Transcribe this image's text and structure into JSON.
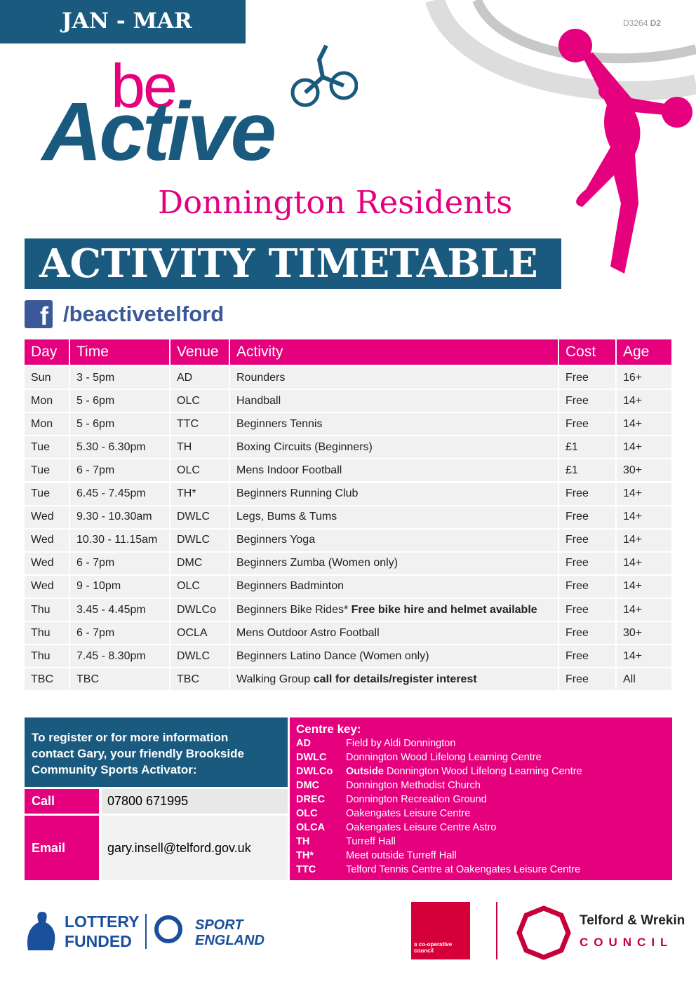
{
  "header": {
    "season": "JAN - MAR",
    "code": "D3264",
    "code_suffix": "D2",
    "logo_be": "be",
    "logo_active": "Active",
    "subtitle": "Donnington Residents",
    "title": "ACTIVITY TIMETABLE",
    "facebook": "/beactivetelford"
  },
  "table": {
    "columns": [
      "Day",
      "Time",
      "Venue",
      "Activity",
      "Cost",
      "Age"
    ],
    "rows": [
      {
        "day": "Sun",
        "time": "3 - 5pm",
        "venue": "AD",
        "activity": "Rounders",
        "cost": "Free",
        "age": "16+"
      },
      {
        "day": "Mon",
        "time": "5 - 6pm",
        "venue": "OLC",
        "activity": "Handball",
        "cost": "Free",
        "age": "14+"
      },
      {
        "day": "Mon",
        "time": "5 - 6pm",
        "venue": "TTC",
        "activity": "Beginners Tennis",
        "cost": "Free",
        "age": "14+"
      },
      {
        "day": "Tue",
        "time": "5.30 - 6.30pm",
        "venue": "TH",
        "activity": "Boxing Circuits (Beginners)",
        "cost": "£1",
        "age": "14+"
      },
      {
        "day": "Tue",
        "time": "6 - 7pm",
        "venue": "OLC",
        "activity": "Mens Indoor Football",
        "cost": "£1",
        "age": "30+"
      },
      {
        "day": "Tue",
        "time": "6.45 - 7.45pm",
        "venue": "TH*",
        "activity": "Beginners Running Club",
        "cost": "Free",
        "age": "14+"
      },
      {
        "day": "Wed",
        "time": "9.30 - 10.30am",
        "venue": "DWLC",
        "activity": "Legs, Bums & Tums",
        "cost": "Free",
        "age": "14+"
      },
      {
        "day": "Wed",
        "time": "10.30 - 11.15am",
        "venue": "DWLC",
        "activity": "Beginners Yoga",
        "cost": "Free",
        "age": "14+"
      },
      {
        "day": "Wed",
        "time": "6 - 7pm",
        "venue": "DMC",
        "activity": "Beginners Zumba (Women only)",
        "cost": "Free",
        "age": "14+"
      },
      {
        "day": "Wed",
        "time": "9 - 10pm",
        "venue": "OLC",
        "activity": "Beginners Badminton",
        "cost": "Free",
        "age": "14+"
      },
      {
        "day": "Thu",
        "time": "3.45 - 4.45pm",
        "venue": "DWLCo",
        "activity": "Beginners Bike Rides*",
        "note": "Free bike hire and helmet available",
        "cost": "Free",
        "age": "14+"
      },
      {
        "day": "Thu",
        "time": "6 - 7pm",
        "venue": "OCLA",
        "activity": "Mens Outdoor Astro Football",
        "cost": "Free",
        "age": "30+"
      },
      {
        "day": "Thu",
        "time": "7.45 - 8.30pm",
        "venue": "DWLC",
        "activity": "Beginners Latino Dance (Women only)",
        "cost": "Free",
        "age": "14+"
      },
      {
        "day": "TBC",
        "time": "TBC",
        "venue": "TBC",
        "activity": "Walking Group",
        "note": "call for details/register interest",
        "cost": "Free",
        "age": "All"
      }
    ]
  },
  "contact": {
    "intro": "To register or for more information contact Gary, your friendly Brookside Community Sports Activator:",
    "call_label": "Call",
    "call": "07800 671995",
    "email_label": "Email",
    "email": "gary.insell@telford.gov.uk"
  },
  "centre_key": {
    "title": "Centre key:",
    "entries": [
      {
        "code": "AD",
        "name": "Field by Aldi Donnington"
      },
      {
        "code": "DWLC",
        "name": "Donnington Wood Lifelong Learning Centre"
      },
      {
        "code": "DWLCo",
        "prefix": "Outside",
        "name": "Donnington Wood Lifelong Learning Centre"
      },
      {
        "code": "DMC",
        "name": "Donnington Methodist Church"
      },
      {
        "code": "DREC",
        "name": "Donnington Recreation Ground"
      },
      {
        "code": "OLC",
        "name": "Oakengates Leisure Centre"
      },
      {
        "code": "OLCA",
        "name": "Oakengates Leisure Centre Astro"
      },
      {
        "code": "TH",
        "name": "Turreff Hall"
      },
      {
        "code": "TH*",
        "name": "Meet outside Turreff Hall"
      },
      {
        "code": "TTC",
        "name": "Telford Tennis Centre at Oakengates Leisure Centre"
      }
    ]
  },
  "footer": {
    "lottery_1": "LOTTERY",
    "lottery_2": "FUNDED",
    "sport_1": "SPORT",
    "sport_2": "ENGLAND",
    "coop": "a co-operative council",
    "council": "Telford & Wrekin",
    "council_sub": "COUNCIL"
  }
}
